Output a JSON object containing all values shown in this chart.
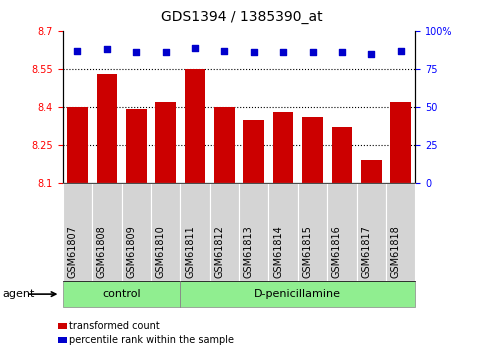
{
  "title": "GDS1394 / 1385390_at",
  "samples": [
    "GSM61807",
    "GSM61808",
    "GSM61809",
    "GSM61810",
    "GSM61811",
    "GSM61812",
    "GSM61813",
    "GSM61814",
    "GSM61815",
    "GSM61816",
    "GSM61817",
    "GSM61818"
  ],
  "bar_values": [
    8.4,
    8.53,
    8.39,
    8.42,
    8.55,
    8.4,
    8.35,
    8.38,
    8.36,
    8.32,
    8.19,
    8.42
  ],
  "percentile_values": [
    87,
    88,
    86,
    86,
    89,
    87,
    86,
    86,
    86,
    86,
    85,
    87
  ],
  "bar_color": "#cc0000",
  "dot_color": "#0000cc",
  "ylim_left": [
    8.1,
    8.7
  ],
  "ylim_right": [
    0,
    100
  ],
  "yticks_left": [
    8.1,
    8.25,
    8.4,
    8.55,
    8.7
  ],
  "yticks_right": [
    0,
    25,
    50,
    75,
    100
  ],
  "ytick_labels_left": [
    "8.1",
    "8.25",
    "8.4",
    "8.55",
    "8.7"
  ],
  "ytick_labels_right": [
    "0",
    "25",
    "50",
    "75",
    "100%"
  ],
  "grid_lines": [
    8.25,
    8.4,
    8.55
  ],
  "control_samples": 4,
  "control_label": "control",
  "treatment_label": "D-penicillamine",
  "agent_label": "agent",
  "legend_bar_label": "transformed count",
  "legend_dot_label": "percentile rank within the sample",
  "bg_color_plot": "#ffffff",
  "bg_color_tick": "#d4d4d4",
  "bg_color_group": "#90EE90",
  "bar_width": 0.7,
  "title_fontsize": 10,
  "tick_fontsize": 7,
  "label_fontsize": 8
}
